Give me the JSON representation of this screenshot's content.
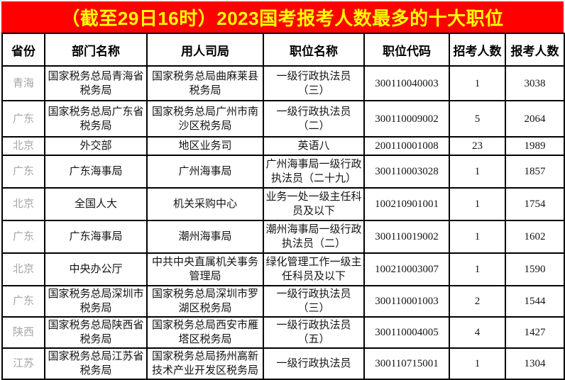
{
  "colors": {
    "title_background": "#fe0000",
    "title_text": "#ffff00",
    "table_border": "#000000",
    "province_text": "#a6a6a6",
    "body_text": "#141414"
  },
  "chart_data": {
    "type": "table",
    "title": "（截至29日16时）2023国考报考人数最多的十大职位",
    "columns": [
      "省份",
      "部门名称",
      "用人司局",
      "职位名称",
      "职位代码",
      "招考人数",
      "报考人数"
    ],
    "rows": [
      [
        "青海",
        "国家税务总局青海省税务局",
        "国家税务总局曲麻莱县税务局",
        "一级行政执法员（三）",
        "300110040003",
        "1",
        "3038"
      ],
      [
        "广东",
        "国家税务总局广东省税务局",
        "国家税务总局广州市南沙区税务局",
        "一级行政执法员（二）",
        "300110009002",
        "5",
        "2064"
      ],
      [
        "北京",
        "外交部",
        "地区业务司",
        "英语八",
        "200110001008",
        "23",
        "1989"
      ],
      [
        "广东",
        "广东海事局",
        "广州海事局",
        "广州海事局一级行政执法员（二十九）",
        "300110003028",
        "1",
        "1857"
      ],
      [
        "北京",
        "全国人大",
        "机关采购中心",
        "业务一处一级主任科员及以下",
        "100210901001",
        "1",
        "1754"
      ],
      [
        "广东",
        "广东海事局",
        "潮州海事局",
        "潮州海事局一级行政执法员（二）",
        "300110019002",
        "1",
        "1602"
      ],
      [
        "北京",
        "中央办公厅",
        "中共中央直属机关事务管理局",
        "绿化管理工作一级主任科员及以下",
        "100210003007",
        "1",
        "1590"
      ],
      [
        "广东",
        "国家税务总局深圳市税务局",
        "国家税务总局深圳市罗湖区税务局",
        "一级行政执法员（三）",
        "300110001003",
        "2",
        "1544"
      ],
      [
        "陕西",
        "国家税务总局陕西省税务局",
        "国家税务总局西安市雁塔区税务局",
        "一级行政执法员（五）",
        "300110004005",
        "4",
        "1427"
      ],
      [
        "江苏",
        "国家税务总局江苏省税务局",
        "国家税务总局扬州高新技术产业开发区税务局",
        "一级行政执法员",
        "300110715001",
        "1",
        "1304"
      ]
    ]
  }
}
